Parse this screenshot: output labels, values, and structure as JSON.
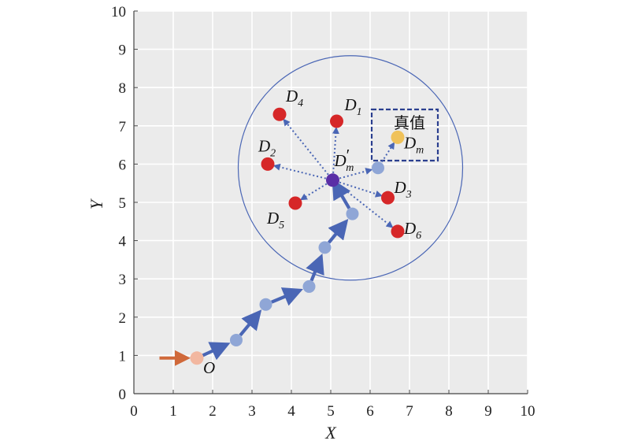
{
  "axes": {
    "xlabel": "X",
    "ylabel": "Y",
    "xlim": [
      0,
      10
    ],
    "ylim": [
      0,
      10
    ],
    "xticks": [
      "0",
      "1",
      "2",
      "3",
      "4",
      "5",
      "6",
      "7",
      "8",
      "9",
      "10"
    ],
    "yticks": [
      "0",
      "1",
      "2",
      "3",
      "4",
      "5",
      "6",
      "7",
      "8",
      "9",
      "10"
    ],
    "grid": true
  },
  "colors": {
    "background": "#ebebeb",
    "grid": "#ffffff",
    "path": "#4a66b5",
    "path_node": "#8fa6d6",
    "origin": "#f2b7a0",
    "origin_arrow": "#d0693a",
    "candidate": "#d62728",
    "estimate": "#5a2ea6",
    "truth": "#f0c25a",
    "circle": "#4a66b5",
    "box": "#2b3f8f"
  },
  "origin": {
    "label": "O",
    "x": 1.6,
    "y": 0.93,
    "arrow_from_x": 0.65
  },
  "path_points": [
    {
      "x": 1.6,
      "y": 0.93
    },
    {
      "x": 2.6,
      "y": 1.4
    },
    {
      "x": 3.35,
      "y": 2.33
    },
    {
      "x": 4.45,
      "y": 2.8
    },
    {
      "x": 4.85,
      "y": 3.82
    },
    {
      "x": 5.55,
      "y": 4.7
    },
    {
      "x": 5.05,
      "y": 5.58
    }
  ],
  "estimate": {
    "label": "D",
    "sub": "m",
    "prime": "′",
    "x": 5.05,
    "y": 5.58
  },
  "extra_node": {
    "x": 6.2,
    "y": 5.9
  },
  "candidates": [
    {
      "label": "D",
      "sub": "1",
      "x": 5.15,
      "y": 7.12
    },
    {
      "label": "D",
      "sub": "2",
      "x": 3.4,
      "y": 6.0
    },
    {
      "label": "D",
      "sub": "3",
      "x": 6.45,
      "y": 5.12
    },
    {
      "label": "D",
      "sub": "4",
      "x": 3.7,
      "y": 7.3
    },
    {
      "label": "D",
      "sub": "5",
      "x": 4.1,
      "y": 4.98
    },
    {
      "label": "D",
      "sub": "6",
      "x": 6.7,
      "y": 4.24
    }
  ],
  "truth": {
    "label": "D",
    "sub": "m",
    "x": 6.7,
    "y": 6.7,
    "caption": "真值"
  },
  "circle": {
    "cx": 5.5,
    "cy": 5.9,
    "r": 2.85
  }
}
